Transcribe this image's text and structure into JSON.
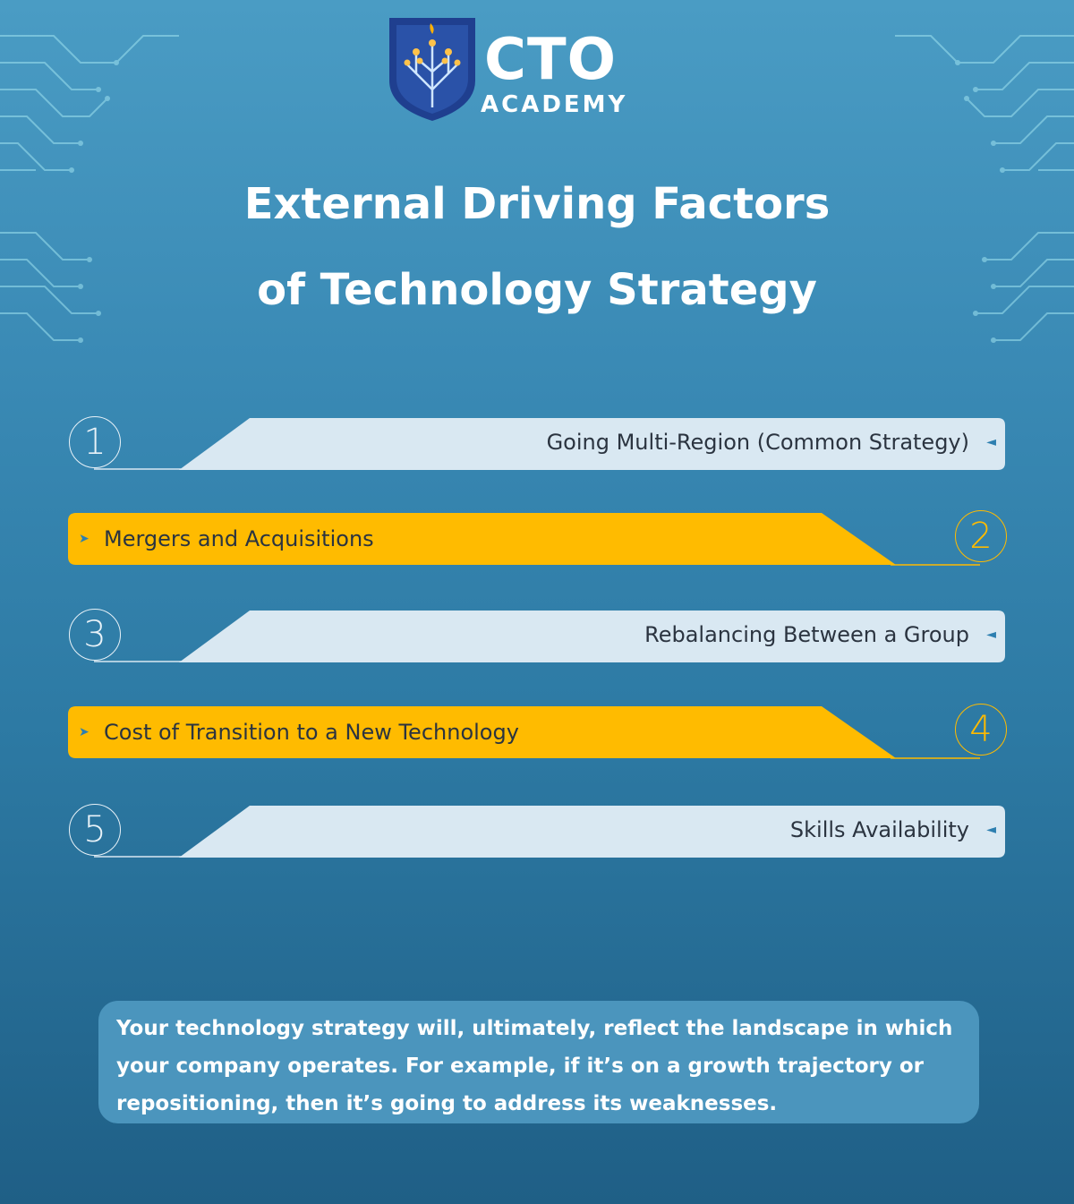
{
  "logo": {
    "main": "CTO",
    "sub": "ACADEMY"
  },
  "title": {
    "line1": "External Driving Factors",
    "line2": "of Technology Strategy"
  },
  "colors": {
    "light_bar": "#d9e8f2",
    "yellow_bar": "#ffbb00",
    "text": "#2b3440",
    "accent_arrow": "#2d7fb0"
  },
  "items": [
    {
      "number": "1",
      "label": "Going Multi-Region (Common Strategy)",
      "style": "light"
    },
    {
      "number": "2",
      "label": "Mergers and Acquisitions",
      "style": "yellow"
    },
    {
      "number": "3",
      "label": "Rebalancing Between a Group",
      "style": "light"
    },
    {
      "number": "4",
      "label": "Cost of Transition to a New Technology",
      "style": "yellow"
    },
    {
      "number": "5",
      "label": "Skills Availability",
      "style": "light"
    }
  ],
  "arrows": {
    "left": "◄",
    "right": "➤"
  },
  "note": "Your technology strategy will, ultimately, reflect the landscape in which your company operates. For example, if it’s on a growth trajectory or repositioning, then it’s going to address its weaknesses."
}
